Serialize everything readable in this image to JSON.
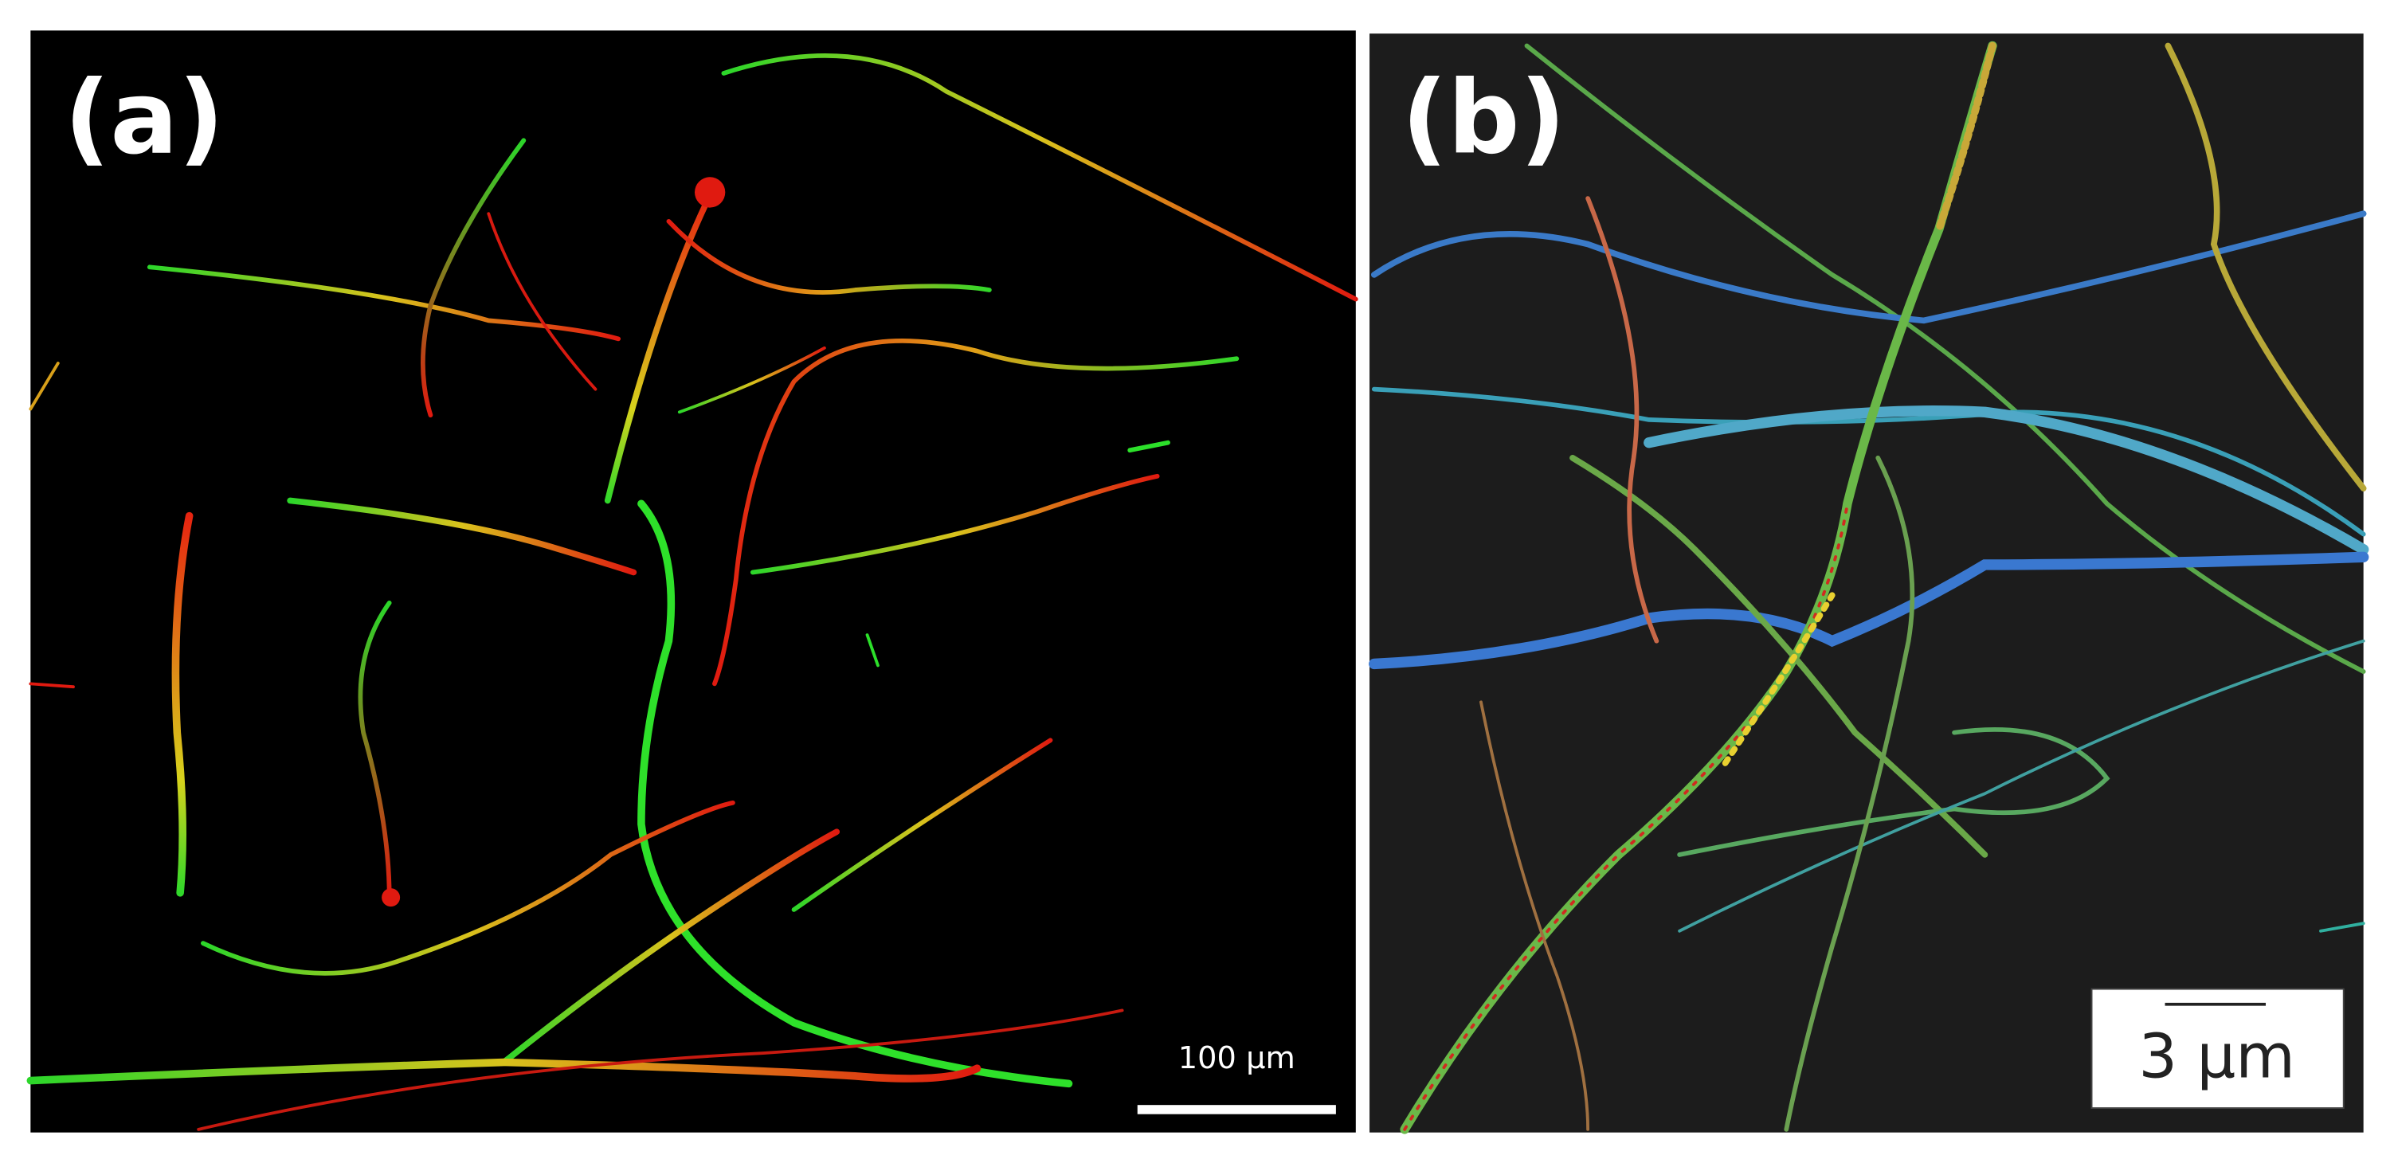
{
  "panels": [
    {
      "label": "(a)",
      "scale_bar": "100 µm"
    },
    {
      "label": "(b)",
      "scale_bar": "3 µm"
    }
  ]
}
